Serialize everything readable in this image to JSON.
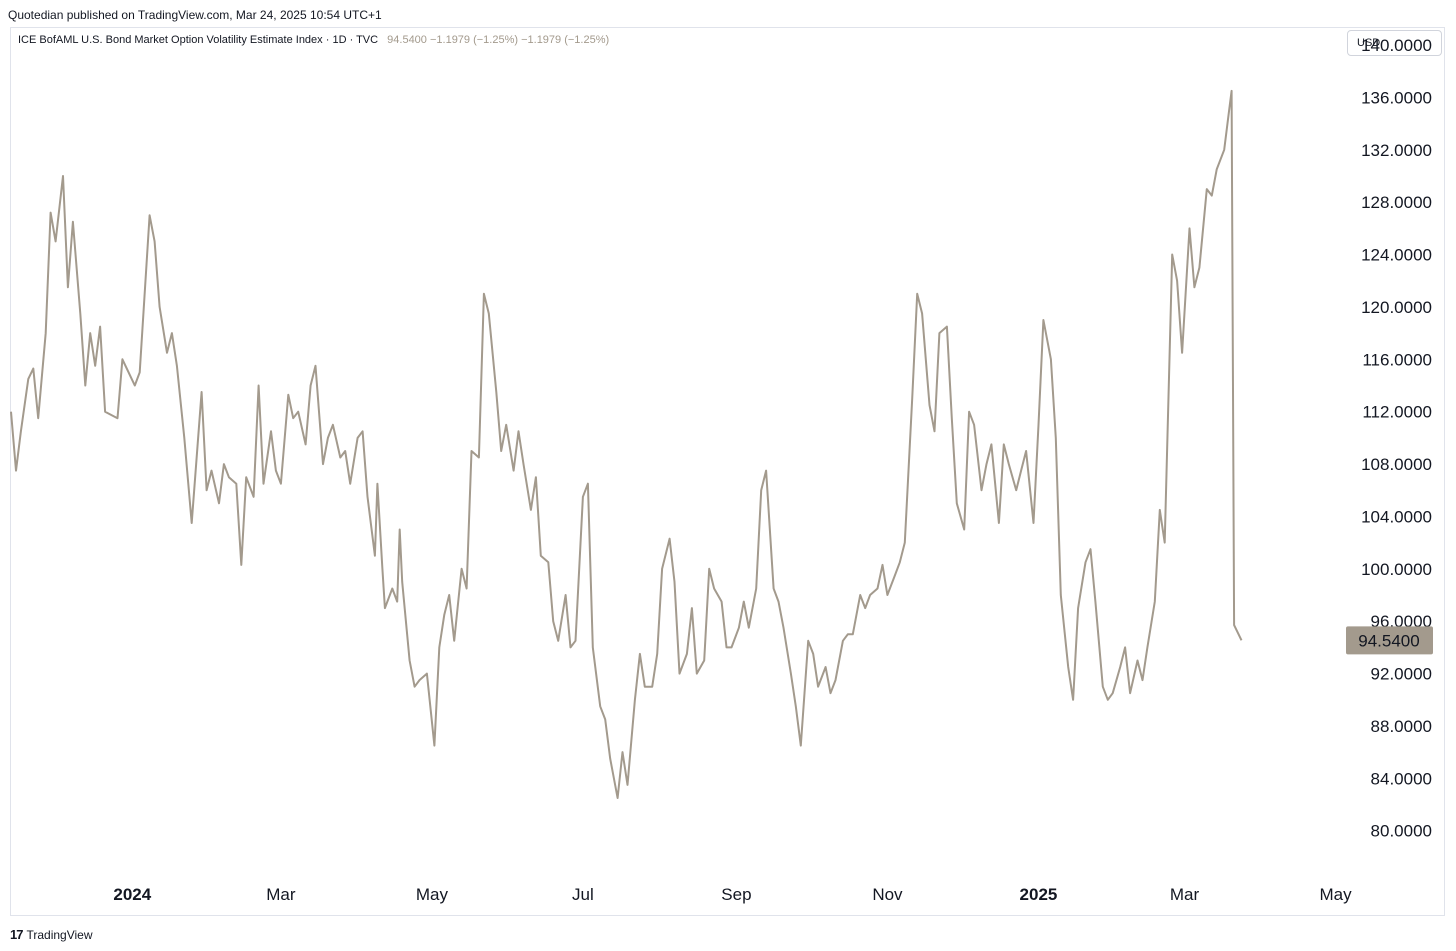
{
  "header": {
    "published": "Quotedian published on TradingView.com, Mar 24, 2025 10:54 UTC+1"
  },
  "legend": {
    "name": "ICE BofAML U.S. Bond Market Option Volatility Estimate Index · 1D · TVC",
    "values": "94.5400  −1.1979 (−1.25%)  −1.1979 (−1.25%)"
  },
  "currency": "USD",
  "last_price_label": "94.5400",
  "footer": {
    "brand": "TradingView",
    "icon": "tradingview-logo-icon"
  },
  "colors": {
    "line": "#a39a8d",
    "price_badge": "#a39a8d",
    "text": "#131722"
  },
  "chart_data": {
    "type": "line",
    "title": "ICE BofAML U.S. Bond Market Option Volatility Estimate Index",
    "ylim": [
      77,
      141.3
    ],
    "ytick_labels": [
      "140.0000",
      "136.0000",
      "132.0000",
      "128.0000",
      "124.0000",
      "120.0000",
      "116.0000",
      "112.0000",
      "108.0000",
      "104.0000",
      "100.0000",
      "96.0000",
      "92.0000",
      "88.0000",
      "84.0000",
      "80.0000"
    ],
    "yticks": [
      140,
      136,
      132,
      128,
      124,
      120,
      116,
      112,
      108,
      104,
      100,
      96,
      92,
      88,
      84,
      80
    ],
    "x_range": [
      "2023-11-13",
      "2025-05-04"
    ],
    "xtick_labels": [
      {
        "label": "2024",
        "date": "2024-01-01",
        "bold": true
      },
      {
        "label": "Mar",
        "date": "2024-03-01",
        "bold": false
      },
      {
        "label": "May",
        "date": "2024-05-01",
        "bold": false
      },
      {
        "label": "Jul",
        "date": "2024-07-01",
        "bold": false
      },
      {
        "label": "Sep",
        "date": "2024-09-01",
        "bold": false
      },
      {
        "label": "Nov",
        "date": "2024-11-01",
        "bold": false
      },
      {
        "label": "2025",
        "date": "2025-01-01",
        "bold": true
      },
      {
        "label": "Mar",
        "date": "2025-03-01",
        "bold": false
      },
      {
        "label": "May",
        "date": "2025-05-01",
        "bold": false
      }
    ],
    "last_value": 94.54,
    "series": [
      {
        "points": [
          [
            "2023-11-13",
            112.0
          ],
          [
            "2023-11-15",
            107.5
          ],
          [
            "2023-11-17",
            110.5
          ],
          [
            "2023-11-20",
            114.5
          ],
          [
            "2023-11-22",
            115.3
          ],
          [
            "2023-11-24",
            111.5
          ],
          [
            "2023-11-27",
            118.0
          ],
          [
            "2023-11-29",
            127.2
          ],
          [
            "2023-12-01",
            125.0
          ],
          [
            "2023-12-04",
            130.0
          ],
          [
            "2023-12-06",
            121.5
          ],
          [
            "2023-12-08",
            126.5
          ],
          [
            "2023-12-11",
            119.5
          ],
          [
            "2023-12-13",
            114.0
          ],
          [
            "2023-12-15",
            118.0
          ],
          [
            "2023-12-17",
            115.5
          ],
          [
            "2023-12-19",
            118.5
          ],
          [
            "2023-12-21",
            112.0
          ],
          [
            "2023-12-26",
            111.5
          ],
          [
            "2023-12-28",
            116.0
          ],
          [
            "2024-01-02",
            114.0
          ],
          [
            "2024-01-04",
            115.0
          ],
          [
            "2024-01-08",
            127.0
          ],
          [
            "2024-01-10",
            125.0
          ],
          [
            "2024-01-12",
            120.0
          ],
          [
            "2024-01-15",
            116.5
          ],
          [
            "2024-01-17",
            118.0
          ],
          [
            "2024-01-19",
            115.5
          ],
          [
            "2024-01-22",
            110.0
          ],
          [
            "2024-01-25",
            103.5
          ],
          [
            "2024-01-29",
            113.5
          ],
          [
            "2024-01-31",
            106.0
          ],
          [
            "2024-02-02",
            107.5
          ],
          [
            "2024-02-05",
            105.0
          ],
          [
            "2024-02-07",
            108.0
          ],
          [
            "2024-02-09",
            107.0
          ],
          [
            "2024-02-12",
            106.5
          ],
          [
            "2024-02-14",
            100.3
          ],
          [
            "2024-02-16",
            107.0
          ],
          [
            "2024-02-19",
            105.5
          ],
          [
            "2024-02-21",
            114.0
          ],
          [
            "2024-02-23",
            106.5
          ],
          [
            "2024-02-26",
            110.5
          ],
          [
            "2024-02-28",
            107.5
          ],
          [
            "2024-03-01",
            106.5
          ],
          [
            "2024-03-04",
            113.3
          ],
          [
            "2024-03-06",
            111.5
          ],
          [
            "2024-03-08",
            112.0
          ],
          [
            "2024-03-11",
            109.5
          ],
          [
            "2024-03-13",
            114.0
          ],
          [
            "2024-03-15",
            115.5
          ],
          [
            "2024-03-18",
            108.0
          ],
          [
            "2024-03-20",
            110.0
          ],
          [
            "2024-03-22",
            111.0
          ],
          [
            "2024-03-25",
            108.5
          ],
          [
            "2024-03-27",
            109.0
          ],
          [
            "2024-03-29",
            106.5
          ],
          [
            "2024-04-01",
            110.0
          ],
          [
            "2024-04-03",
            110.5
          ],
          [
            "2024-04-05",
            105.5
          ],
          [
            "2024-04-08",
            101.0
          ],
          [
            "2024-04-09",
            106.5
          ],
          [
            "2024-04-11",
            100.0
          ],
          [
            "2024-04-12",
            97.0
          ],
          [
            "2024-04-15",
            98.5
          ],
          [
            "2024-04-17",
            97.5
          ],
          [
            "2024-04-18",
            103.0
          ],
          [
            "2024-04-19",
            99.0
          ],
          [
            "2024-04-22",
            93.0
          ],
          [
            "2024-04-24",
            91.0
          ],
          [
            "2024-04-26",
            91.5
          ],
          [
            "2024-04-29",
            92.0
          ],
          [
            "2024-05-02",
            86.5
          ],
          [
            "2024-05-04",
            94.0
          ],
          [
            "2024-05-06",
            96.5
          ],
          [
            "2024-05-08",
            98.0
          ],
          [
            "2024-05-10",
            94.5
          ],
          [
            "2024-05-13",
            100.0
          ],
          [
            "2024-05-15",
            98.5
          ],
          [
            "2024-05-17",
            109.0
          ],
          [
            "2024-05-20",
            108.5
          ],
          [
            "2024-05-22",
            121.0
          ],
          [
            "2024-05-24",
            119.5
          ],
          [
            "2024-05-27",
            113.5
          ],
          [
            "2024-05-29",
            109.0
          ],
          [
            "2024-05-31",
            111.0
          ],
          [
            "2024-06-03",
            107.5
          ],
          [
            "2024-06-05",
            110.5
          ],
          [
            "2024-06-07",
            108.0
          ],
          [
            "2024-06-10",
            104.5
          ],
          [
            "2024-06-12",
            107.0
          ],
          [
            "2024-06-14",
            101.0
          ],
          [
            "2024-06-17",
            100.5
          ],
          [
            "2024-06-19",
            96.0
          ],
          [
            "2024-06-21",
            94.5
          ],
          [
            "2024-06-24",
            98.0
          ],
          [
            "2024-06-26",
            94.0
          ],
          [
            "2024-06-28",
            94.5
          ],
          [
            "2024-07-01",
            105.5
          ],
          [
            "2024-07-03",
            106.5
          ],
          [
            "2024-07-05",
            94.0
          ],
          [
            "2024-07-08",
            89.5
          ],
          [
            "2024-07-10",
            88.5
          ],
          [
            "2024-07-12",
            85.5
          ],
          [
            "2024-07-15",
            82.5
          ],
          [
            "2024-07-17",
            86.0
          ],
          [
            "2024-07-19",
            83.5
          ],
          [
            "2024-07-22",
            90.0
          ],
          [
            "2024-07-24",
            93.5
          ],
          [
            "2024-07-26",
            91.0
          ],
          [
            "2024-07-29",
            91.0
          ],
          [
            "2024-07-31",
            93.5
          ],
          [
            "2024-08-02",
            100.0
          ],
          [
            "2024-08-05",
            102.3
          ],
          [
            "2024-08-07",
            99.0
          ],
          [
            "2024-08-09",
            92.0
          ],
          [
            "2024-08-12",
            93.5
          ],
          [
            "2024-08-14",
            97.0
          ],
          [
            "2024-08-16",
            92.0
          ],
          [
            "2024-08-19",
            93.0
          ],
          [
            "2024-08-21",
            100.0
          ],
          [
            "2024-08-23",
            98.5
          ],
          [
            "2024-08-26",
            97.5
          ],
          [
            "2024-08-28",
            94.0
          ],
          [
            "2024-08-30",
            94.0
          ],
          [
            "2024-09-02",
            95.5
          ],
          [
            "2024-09-04",
            97.5
          ],
          [
            "2024-09-06",
            95.5
          ],
          [
            "2024-09-09",
            98.5
          ],
          [
            "2024-09-11",
            106.0
          ],
          [
            "2024-09-13",
            107.5
          ],
          [
            "2024-09-16",
            98.5
          ],
          [
            "2024-09-18",
            97.5
          ],
          [
            "2024-09-20",
            95.5
          ],
          [
            "2024-09-23",
            92.0
          ],
          [
            "2024-09-25",
            89.5
          ],
          [
            "2024-09-27",
            86.5
          ],
          [
            "2024-09-30",
            94.5
          ],
          [
            "2024-10-02",
            93.5
          ],
          [
            "2024-10-04",
            91.0
          ],
          [
            "2024-10-07",
            92.5
          ],
          [
            "2024-10-09",
            90.5
          ],
          [
            "2024-10-11",
            91.5
          ],
          [
            "2024-10-14",
            94.5
          ],
          [
            "2024-10-16",
            95.0
          ],
          [
            "2024-10-18",
            95.0
          ],
          [
            "2024-10-21",
            98.0
          ],
          [
            "2024-10-23",
            97.0
          ],
          [
            "2024-10-25",
            98.0
          ],
          [
            "2024-10-28",
            98.5
          ],
          [
            "2024-10-30",
            100.3
          ],
          [
            "2024-11-01",
            98.0
          ],
          [
            "2024-11-04",
            99.5
          ],
          [
            "2024-11-06",
            100.5
          ],
          [
            "2024-11-08",
            102.0
          ],
          [
            "2024-11-11",
            113.0
          ],
          [
            "2024-11-13",
            121.0
          ],
          [
            "2024-11-15",
            119.5
          ],
          [
            "2024-11-18",
            112.5
          ],
          [
            "2024-11-20",
            110.5
          ],
          [
            "2024-11-22",
            118.0
          ],
          [
            "2024-11-25",
            118.5
          ],
          [
            "2024-11-27",
            111.5
          ],
          [
            "2024-11-29",
            105.0
          ],
          [
            "2024-12-02",
            103.0
          ],
          [
            "2024-12-04",
            112.0
          ],
          [
            "2024-12-06",
            111.0
          ],
          [
            "2024-12-09",
            106.0
          ],
          [
            "2024-12-11",
            108.0
          ],
          [
            "2024-12-13",
            109.5
          ],
          [
            "2024-12-16",
            103.5
          ],
          [
            "2024-12-18",
            109.5
          ],
          [
            "2024-12-20",
            108.0
          ],
          [
            "2024-12-23",
            106.0
          ],
          [
            "2024-12-25",
            107.5
          ],
          [
            "2024-12-27",
            109.0
          ],
          [
            "2024-12-30",
            103.5
          ],
          [
            "2025-01-01",
            111.0
          ],
          [
            "2025-01-03",
            119.0
          ],
          [
            "2025-01-06",
            116.0
          ],
          [
            "2025-01-08",
            110.0
          ],
          [
            "2025-01-10",
            98.0
          ],
          [
            "2025-01-13",
            92.5
          ],
          [
            "2025-01-15",
            90.0
          ],
          [
            "2025-01-17",
            97.0
          ],
          [
            "2025-01-20",
            100.5
          ],
          [
            "2025-01-22",
            101.5
          ],
          [
            "2025-01-24",
            97.5
          ],
          [
            "2025-01-27",
            91.0
          ],
          [
            "2025-01-29",
            90.0
          ],
          [
            "2025-01-31",
            90.5
          ],
          [
            "2025-02-03",
            92.5
          ],
          [
            "2025-02-05",
            94.0
          ],
          [
            "2025-02-07",
            90.5
          ],
          [
            "2025-02-10",
            93.0
          ],
          [
            "2025-02-12",
            91.5
          ],
          [
            "2025-02-14",
            94.0
          ],
          [
            "2025-02-17",
            97.5
          ],
          [
            "2025-02-19",
            104.5
          ],
          [
            "2025-02-21",
            102.0
          ],
          [
            "2025-02-24",
            124.0
          ],
          [
            "2025-02-26",
            122.0
          ],
          [
            "2025-02-28",
            116.5
          ],
          [
            "2025-03-03",
            126.0
          ],
          [
            "2025-03-05",
            121.5
          ],
          [
            "2025-03-07",
            123.0
          ],
          [
            "2025-03-10",
            129.0
          ],
          [
            "2025-03-12",
            128.5
          ],
          [
            "2025-03-14",
            130.5
          ],
          [
            "2025-03-17",
            132.0
          ],
          [
            "2025-03-19",
            135.0
          ],
          [
            "2025-03-20",
            136.5
          ],
          [
            "2025-03-21",
            95.7
          ],
          [
            "2025-03-24",
            94.54
          ]
        ]
      }
    ]
  }
}
